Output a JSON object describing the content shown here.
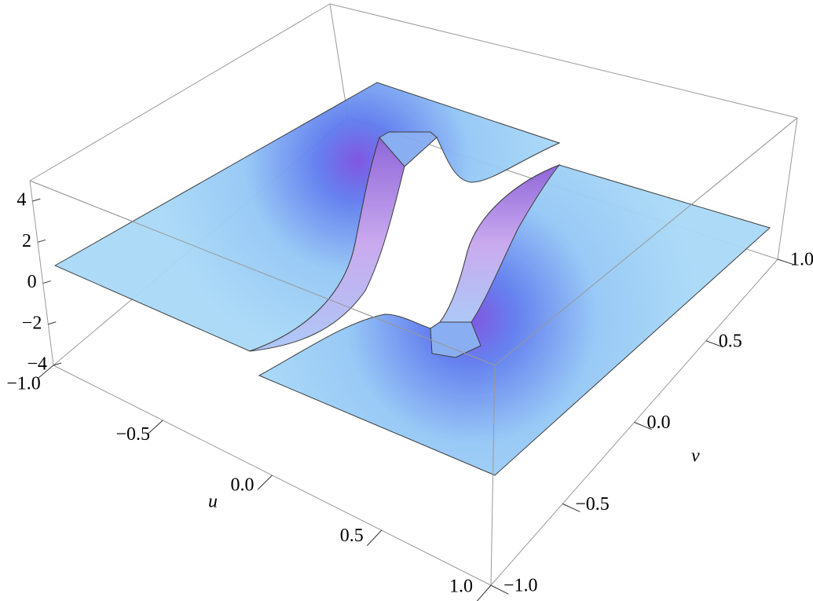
{
  "chart_data": {
    "type": "surface3d",
    "xlabel": "u",
    "ylabel": "v",
    "xlim": [
      -1,
      1
    ],
    "ylim": [
      -1,
      1
    ],
    "zlim": [
      -4,
      5
    ],
    "xticks": [
      {
        "value": -1,
        "label": "−1.0"
      },
      {
        "value": -0.5,
        "label": "−0.5"
      },
      {
        "value": 0,
        "label": "0.0"
      },
      0.5,
      {
        "value": 1,
        "label": "1.0"
      }
    ],
    "yticks": [
      {
        "value": -1,
        "label": "−1.0"
      },
      {
        "value": -0.5,
        "label": "−0.5"
      },
      {
        "value": 0,
        "label": "0.0"
      },
      0.5,
      {
        "value": 1,
        "label": "1.0"
      }
    ],
    "zticks": [
      {
        "value": -4,
        "label": "−4"
      },
      {
        "value": -2,
        "label": "−2"
      },
      0,
      2,
      4
    ],
    "color": "#a9d9f7"
  }
}
